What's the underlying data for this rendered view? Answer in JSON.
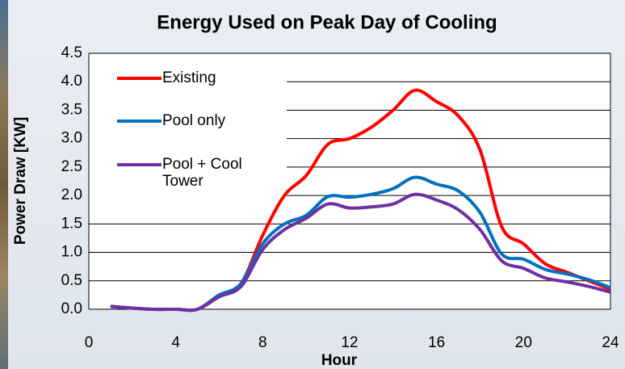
{
  "chart_data": {
    "type": "line",
    "title": "Energy Used on Peak Day of Cooling",
    "x_label": "Hour",
    "y_label": "Power Draw [KW]",
    "x": [
      1,
      2,
      3,
      4,
      5,
      6,
      7,
      8,
      9,
      10,
      11,
      12,
      13,
      14,
      15,
      16,
      17,
      18,
      19,
      20,
      21,
      22,
      23,
      24
    ],
    "series": [
      {
        "name": "Existing",
        "color": "#ff0000",
        "values": [
          0.05,
          0.02,
          0,
          0,
          0,
          0.25,
          0.45,
          1.3,
          2.0,
          2.35,
          2.9,
          3.0,
          3.2,
          3.5,
          3.85,
          3.65,
          3.4,
          2.8,
          1.45,
          1.15,
          0.8,
          0.65,
          0.5,
          0.35
        ]
      },
      {
        "name": "Pool only",
        "color": "#0070c0",
        "values": [
          0.05,
          0.02,
          0,
          0,
          0,
          0.25,
          0.45,
          1.15,
          1.5,
          1.65,
          1.98,
          1.97,
          2.02,
          2.12,
          2.32,
          2.2,
          2.08,
          1.7,
          0.97,
          0.88,
          0.7,
          0.62,
          0.52,
          0.38
        ]
      },
      {
        "name": "Pool + Cool Tower",
        "color": "#7030a0",
        "values": [
          0.05,
          0.02,
          0,
          0,
          0,
          0.22,
          0.4,
          1.05,
          1.4,
          1.6,
          1.85,
          1.78,
          1.8,
          1.85,
          2.02,
          1.92,
          1.75,
          1.4,
          0.85,
          0.72,
          0.55,
          0.48,
          0.4,
          0.3
        ]
      }
    ],
    "xlim": [
      0,
      24
    ],
    "xticks": [
      0,
      4,
      8,
      12,
      16,
      20,
      24
    ],
    "ylim": [
      0,
      4.5
    ],
    "yticks": [
      {
        "value": 0,
        "label": "0.0"
      },
      0.5,
      {
        "value": 1,
        "label": "1.0"
      },
      1.5,
      {
        "value": 2,
        "label": "2.0"
      },
      2.5,
      {
        "value": 3,
        "label": "3.0"
      },
      3.5,
      {
        "value": 4,
        "label": "4.0"
      },
      4.5
    ],
    "grid": true,
    "legend": "upper left"
  }
}
